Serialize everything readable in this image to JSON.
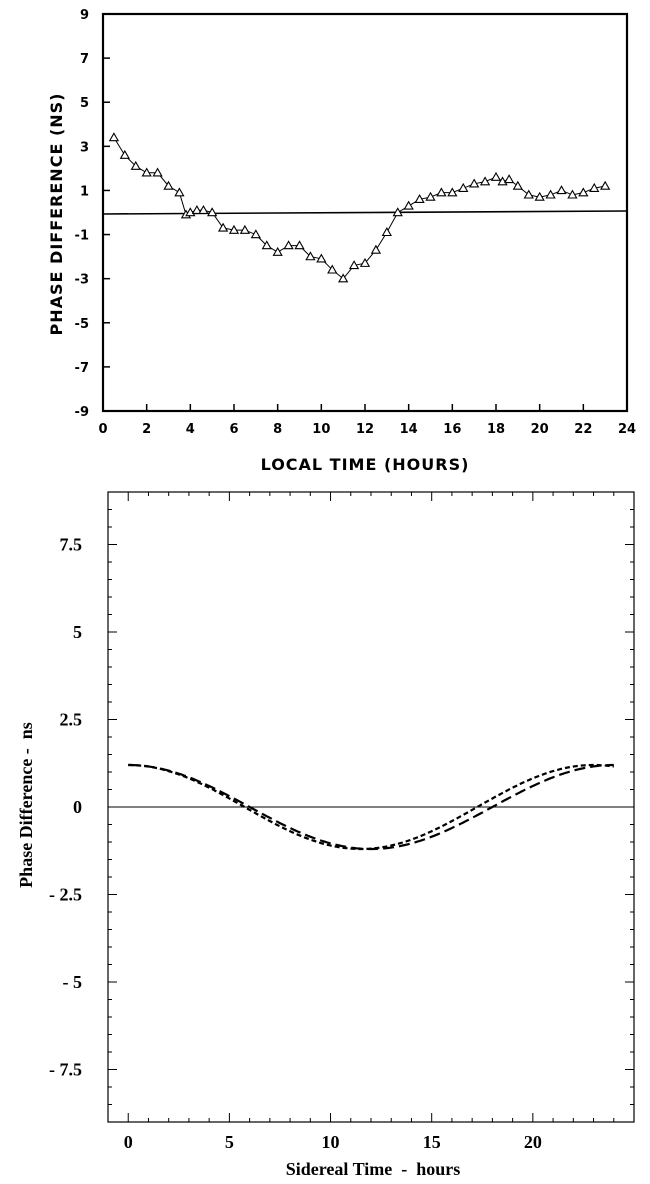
{
  "chart_data": [
    {
      "type": "scatter",
      "title": "",
      "xlabel": "LOCAL TIME (HOURS)",
      "ylabel": "PHASE DIFFERENCE (NS)",
      "xlim": [
        0,
        24
      ],
      "ylim": [
        -9,
        9
      ],
      "xticks": [
        0,
        2,
        4,
        6,
        8,
        10,
        12,
        14,
        16,
        18,
        20,
        22,
        24
      ],
      "xtick_labels": [
        "0",
        "2",
        "4",
        "6",
        "8",
        "10",
        "12",
        "14",
        "16",
        "18",
        "20",
        "22",
        "24"
      ],
      "yticks": [
        9,
        7,
        5,
        3,
        1,
        -1,
        -3,
        -5,
        -7,
        -9
      ],
      "ytick_labels": [
        "9",
        "7",
        "5",
        "3",
        "1",
        "-1",
        "-3",
        "-5",
        "-7",
        "-9"
      ],
      "reference_line_y": 0,
      "marker": "open-triangle",
      "grid": false,
      "legend": "none",
      "series": [
        {
          "x": [
            0.5,
            1.0,
            1.5,
            2.0,
            2.5,
            3.0,
            3.5,
            3.8,
            4.0,
            4.3,
            4.6,
            5.0,
            5.5,
            6.0,
            6.5,
            7.0,
            7.5,
            8.0,
            8.5,
            9.0,
            9.5,
            10.0,
            10.5,
            11.0,
            11.5,
            12.0,
            12.5,
            13.0,
            13.5,
            14.0,
            14.5,
            15.0,
            15.5,
            16.0,
            16.5,
            17.0,
            17.5,
            18.0,
            18.3,
            18.6,
            19.0,
            19.5,
            20.0,
            20.5,
            21.0,
            21.5,
            22.0,
            22.5,
            23.0
          ],
          "y": [
            3.4,
            2.6,
            2.1,
            1.8,
            1.8,
            1.2,
            0.9,
            -0.1,
            0.0,
            0.1,
            0.1,
            0.0,
            -0.7,
            -0.8,
            -0.8,
            -1.0,
            -1.5,
            -1.8,
            -1.5,
            -1.5,
            -2.0,
            -2.1,
            -2.6,
            -3.0,
            -2.4,
            -2.3,
            -1.7,
            -0.9,
            0.0,
            0.3,
            0.6,
            0.7,
            0.9,
            0.9,
            1.1,
            1.3,
            1.4,
            1.6,
            1.4,
            1.5,
            1.2,
            0.8,
            0.7,
            0.8,
            1.0,
            0.8,
            0.9,
            1.1,
            1.2
          ]
        }
      ]
    },
    {
      "type": "line",
      "title": "",
      "xlabel": "Sidereal Time  -  hours",
      "ylabel": "Phase Difference -  ns",
      "xlim": [
        -1,
        25
      ],
      "ylim": [
        -9,
        9
      ],
      "xticks": [
        0,
        5,
        10,
        15,
        20
      ],
      "xtick_labels": [
        "0",
        "5",
        "10",
        "15",
        "20"
      ],
      "yticks": [
        7.5,
        5,
        2.5,
        0,
        -2.5,
        -5,
        -7.5
      ],
      "ytick_labels": [
        "7.5",
        "5",
        "2.5",
        "0",
        "- 2.5",
        "- 5",
        "- 7.5"
      ],
      "reference_line_y": 0,
      "grid": false,
      "legend": "none",
      "series": [
        {
          "style": "long-dash",
          "amplitude": 1.2,
          "period": 24,
          "phase_hours": 0.0,
          "x_range": [
            0,
            24
          ]
        },
        {
          "style": "short-dash",
          "amplitude": 1.2,
          "period": 23,
          "phase_hours": 0.0,
          "x_range": [
            0,
            24
          ]
        }
      ]
    }
  ]
}
